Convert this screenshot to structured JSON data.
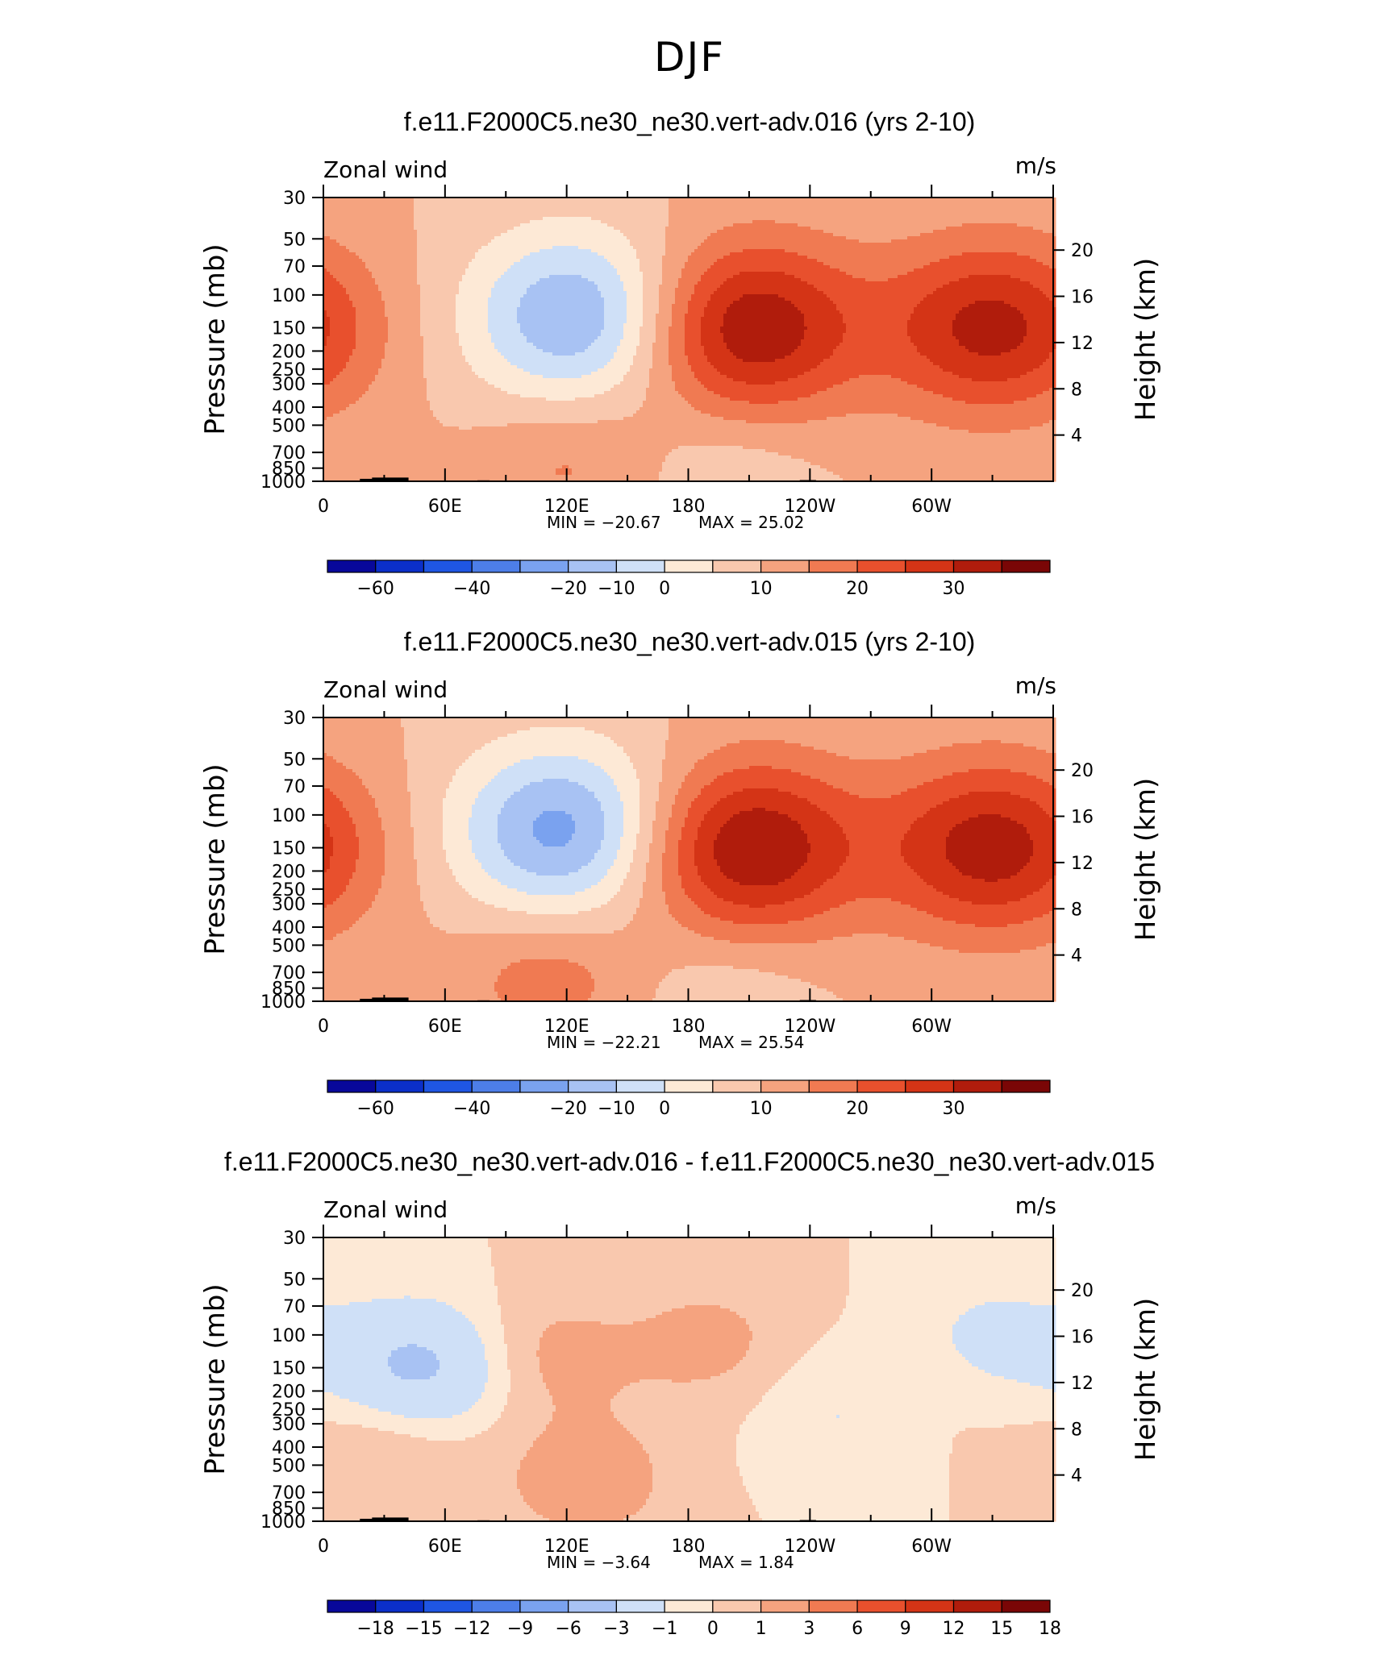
{
  "figure_title": "DJF",
  "chart_data": [
    {
      "type": "contour",
      "title": "f.e11.F2000C5.ne30_ne30.vert-adv.016 (yrs 2-10)",
      "left_label": "Zonal wind",
      "right_label": "m/s",
      "ylabel": "Pressure (mb)",
      "ylabel_right": "Height (km)",
      "xticks": [
        "0",
        "60E",
        "120E",
        "180",
        "120W",
        "60W"
      ],
      "yticks": [
        "30",
        "50",
        "70",
        "100",
        "150",
        "200",
        "250",
        "300",
        "400",
        "500",
        "700",
        "850",
        "1000"
      ],
      "yticks_right": [
        "20",
        "16",
        "12",
        "8",
        "4"
      ],
      "min_text": "MIN = −20.67",
      "max_text": "MAX = 25.02",
      "colorbar_labels": [
        "−60",
        "−40",
        "−20",
        "−10",
        "0",
        "10",
        "20",
        "30"
      ],
      "levels": [
        -70,
        -60,
        -50,
        -40,
        -30,
        -20,
        -15,
        -10,
        -5,
        0,
        5,
        10,
        15,
        20,
        25,
        30,
        35
      ],
      "features": [
        {
          "lon": 125,
          "p": 130,
          "value": -20.7
        },
        {
          "lon": 210,
          "p": 150,
          "value": 25.0
        },
        {
          "lon": 330,
          "p": 150,
          "value": 22.0
        },
        {
          "lon": 120,
          "p": 780,
          "value": 6.0
        },
        {
          "lon": 200,
          "p": 850,
          "value": -4.0
        }
      ]
    },
    {
      "type": "contour",
      "title": "f.e11.F2000C5.ne30_ne30.vert-adv.015 (yrs 2-10)",
      "left_label": "Zonal wind",
      "right_label": "m/s",
      "ylabel": "Pressure (mb)",
      "ylabel_right": "Height (km)",
      "xticks": [
        "0",
        "60E",
        "120E",
        "180",
        "120W",
        "60W"
      ],
      "yticks": [
        "30",
        "50",
        "70",
        "100",
        "150",
        "200",
        "250",
        "300",
        "400",
        "500",
        "700",
        "850",
        "1000"
      ],
      "yticks_right": [
        "20",
        "16",
        "12",
        "8",
        "4"
      ],
      "min_text": "MIN = −22.21",
      "max_text": "MAX = 25.54",
      "colorbar_labels": [
        "−60",
        "−40",
        "−20",
        "−10",
        "0",
        "10",
        "20",
        "30"
      ],
      "levels": [
        -70,
        -60,
        -50,
        -40,
        -30,
        -20,
        -15,
        -10,
        -5,
        0,
        5,
        10,
        15,
        20,
        25,
        30,
        35
      ],
      "features": [
        {
          "lon": 118,
          "p": 120,
          "value": -22.2
        },
        {
          "lon": 210,
          "p": 150,
          "value": 25.5
        },
        {
          "lon": 330,
          "p": 150,
          "value": 23.0
        },
        {
          "lon": 110,
          "p": 750,
          "value": 8.0
        },
        {
          "lon": 200,
          "p": 870,
          "value": -4.0
        }
      ]
    },
    {
      "type": "contour",
      "title": "f.e11.F2000C5.ne30_ne30.vert-adv.016 - f.e11.F2000C5.ne30_ne30.vert-adv.015",
      "left_label": "Zonal wind",
      "right_label": "m/s",
      "ylabel": "Pressure (mb)",
      "ylabel_right": "Height (km)",
      "xticks": [
        "0",
        "60E",
        "120E",
        "180",
        "120W",
        "60W"
      ],
      "yticks": [
        "30",
        "50",
        "70",
        "100",
        "150",
        "200",
        "250",
        "300",
        "400",
        "500",
        "700",
        "850",
        "1000"
      ],
      "yticks_right": [
        "20",
        "16",
        "12",
        "8",
        "4"
      ],
      "min_text": "MIN = −3.64",
      "max_text": "MAX = 1.84",
      "colorbar_labels": [
        "−18",
        "−15",
        "−12",
        "−9",
        "−6",
        "−3",
        "−1",
        "0",
        "1",
        "3",
        "6",
        "9",
        "12",
        "15",
        "18"
      ],
      "levels": [
        -21,
        -18,
        -15,
        -12,
        -9,
        -6,
        -3,
        -1,
        0,
        1,
        3,
        6,
        9,
        12,
        15,
        18,
        21
      ],
      "features": [
        {
          "lon": 48,
          "p": 150,
          "value": -3.6
        },
        {
          "lon": 330,
          "p": 110,
          "value": -1.5
        },
        {
          "lon": 260,
          "p": 250,
          "value": -1.4
        },
        {
          "lon": 110,
          "p": 130,
          "value": 1.5
        },
        {
          "lon": 190,
          "p": 110,
          "value": 1.4
        },
        {
          "lon": 130,
          "p": 600,
          "value": 1.8
        },
        {
          "lon": 30,
          "p": 400,
          "value": 1.2
        },
        {
          "lon": 290,
          "p": 200,
          "value": 0.8
        }
      ]
    }
  ],
  "colors": {
    "colormap": [
      "#08089a",
      "#0b2fc9",
      "#1f56e3",
      "#4d7ee8",
      "#7aa2ef",
      "#a8c2f3",
      "#cfe0f7",
      "#fde9d6",
      "#f9c8ae",
      "#f5a37f",
      "#f07a52",
      "#e8502d",
      "#d43416",
      "#b01c0c",
      "#7a0606"
    ],
    "axis": "#000000",
    "topography": "#000000"
  }
}
